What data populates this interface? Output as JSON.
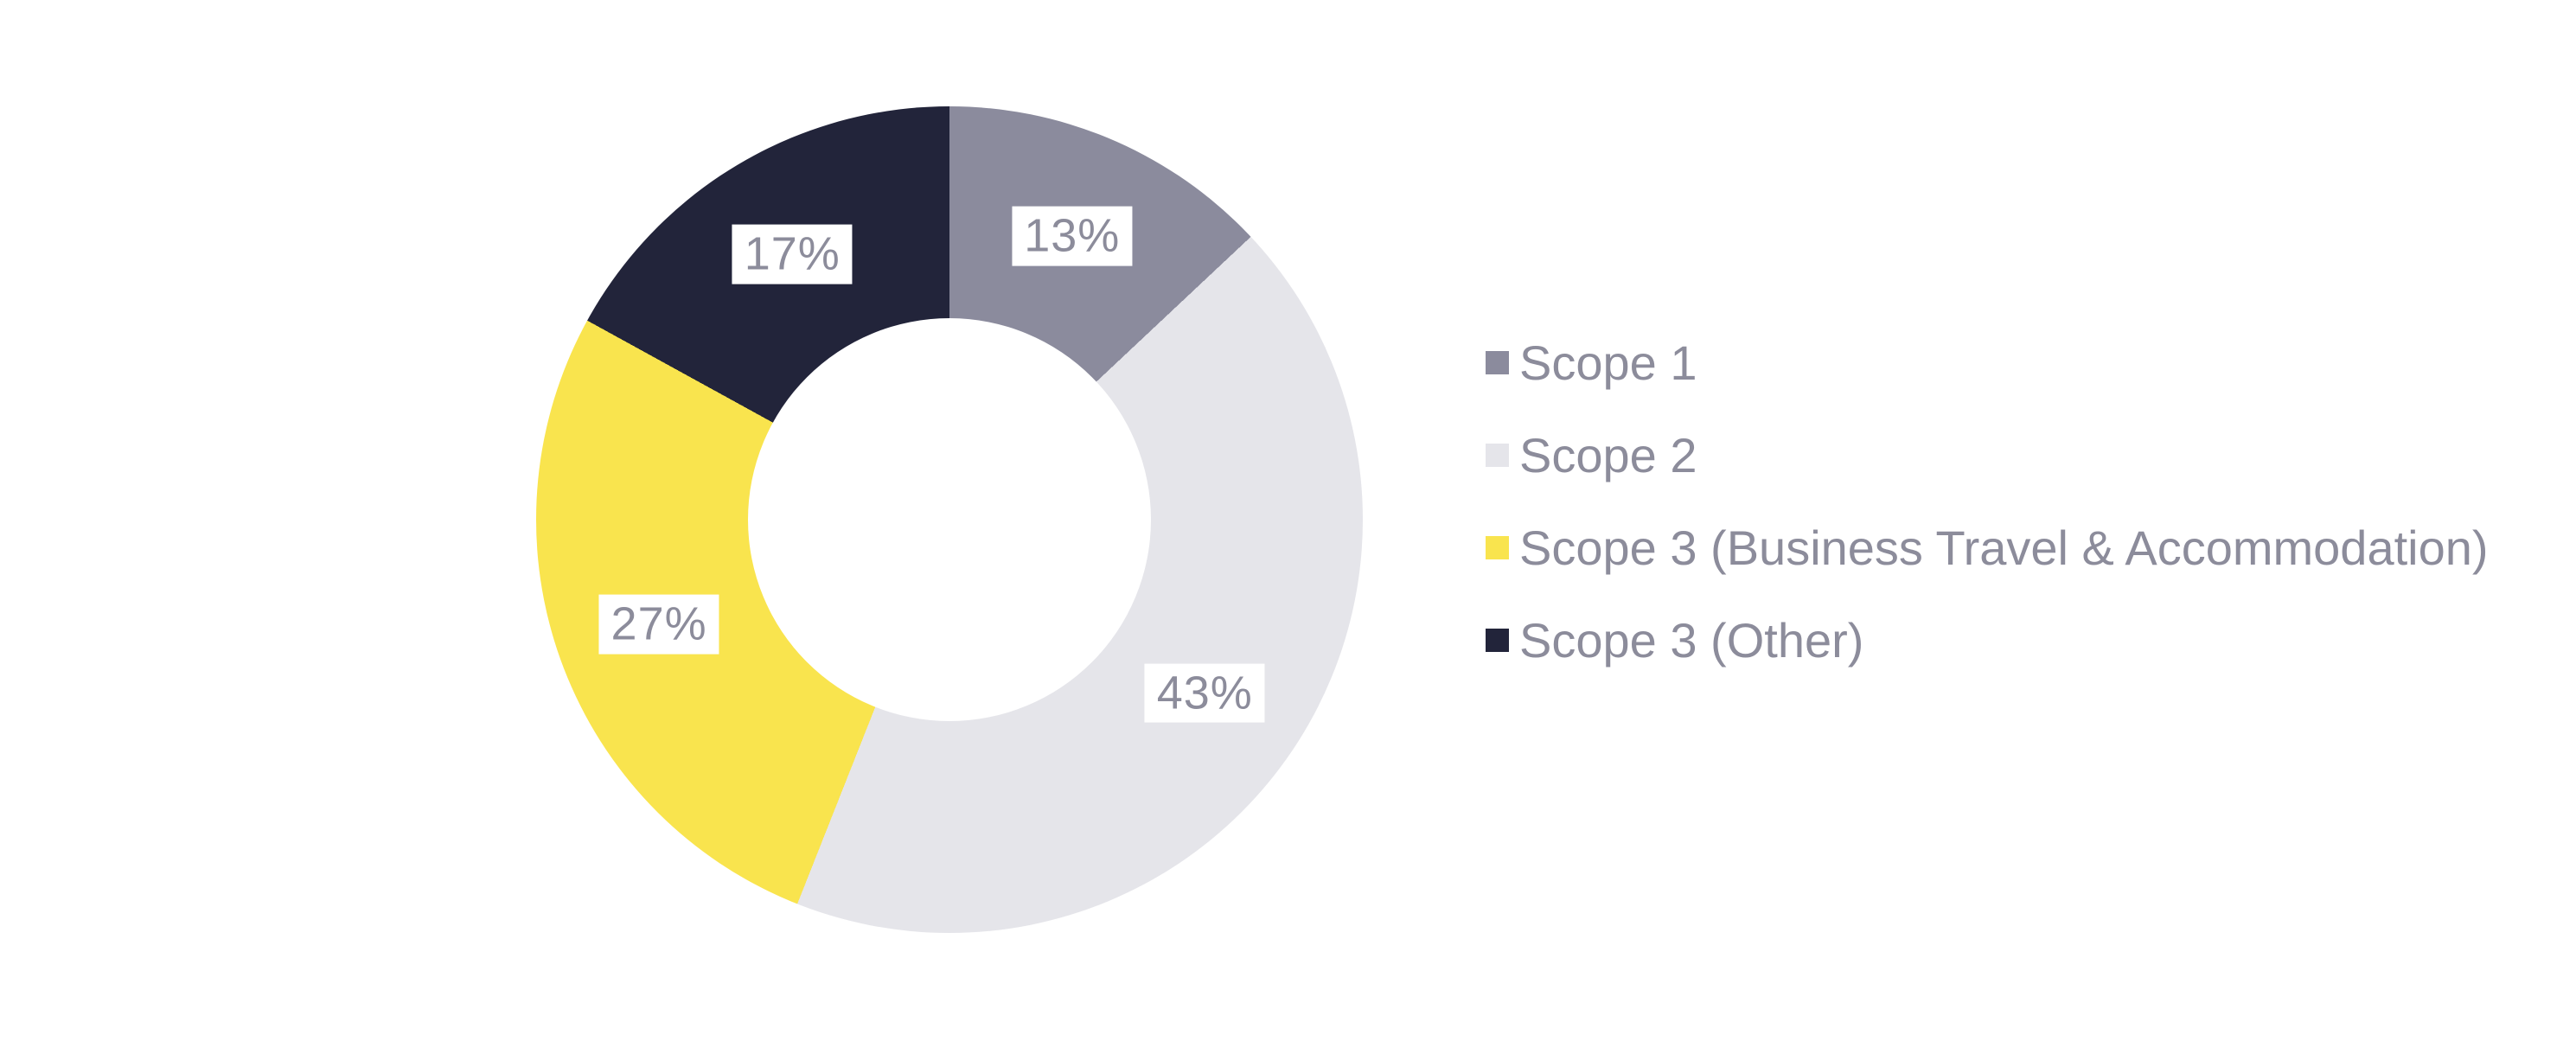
{
  "chart_data": {
    "type": "pie",
    "subtype": "donut",
    "title": "",
    "categories": [
      "Scope 1",
      "Scope 2",
      "Scope 3 (Business Travel & Accommodation)",
      "Scope 3 (Other)"
    ],
    "values": [
      13,
      43,
      27,
      17
    ],
    "unit": "%",
    "labels": [
      "13%",
      "43%",
      "27%",
      "17%"
    ],
    "colors": [
      "#8B8B9D",
      "#E5E5EA",
      "#F9E44E",
      "#22243A"
    ],
    "start_angle_deg": 0,
    "direction": "clockwise",
    "legend_position": "right",
    "hole_ratio": 0.49
  },
  "legend": {
    "items": [
      {
        "label": "Scope 1",
        "color": "#8B8B9D"
      },
      {
        "label": "Scope 2",
        "color": "#E5E5EA"
      },
      {
        "label": "Scope 3 (Business Travel & Accommodation)",
        "color": "#F9E44E"
      },
      {
        "label": "Scope 3 (Other)",
        "color": "#22243A"
      }
    ]
  },
  "colors": {
    "background": "#FFFFFF",
    "label_text": "#8C8C9B",
    "label_box_background": "#FFFFFF"
  }
}
